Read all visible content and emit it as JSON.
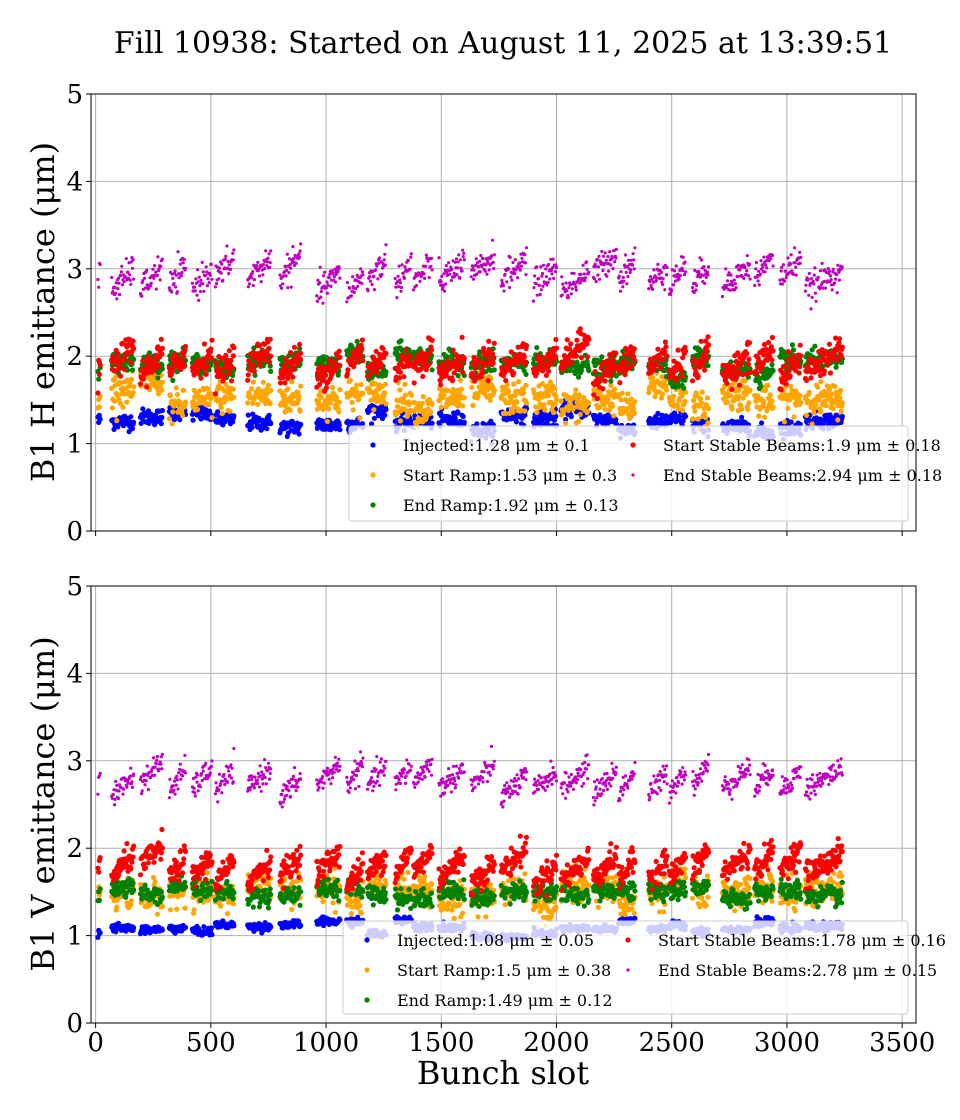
{
  "figure": {
    "title": "Fill 10938: Started on August 11, 2025 at 13:39:51",
    "xlabel": "Bunch slot"
  },
  "chart_data": [
    {
      "type": "scatter",
      "title": "",
      "ylabel": "B1 H emittance (μm)",
      "xlim": [
        -20,
        3560
      ],
      "ylim": [
        0,
        5
      ],
      "x_ticks": [
        0,
        500,
        1000,
        1500,
        2000,
        2500,
        3000,
        3500
      ],
      "y_ticks": [
        0,
        1,
        2,
        3,
        4,
        5
      ],
      "grid": true,
      "legend_placement": "lower-right",
      "series": [
        {
          "name": "Injected",
          "legend_label": "Injected:1.28 μm ± 0.1",
          "mean": 1.28,
          "std": 0.1,
          "color": "#0000ff"
        },
        {
          "name": "Start Ramp",
          "legend_label": "Start Ramp:1.53 μm ± 0.3",
          "mean": 1.53,
          "std": 0.3,
          "color": "#ffa500"
        },
        {
          "name": "End Ramp",
          "legend_label": "End Ramp:1.92 μm ± 0.13",
          "mean": 1.92,
          "std": 0.13,
          "color": "#008000"
        },
        {
          "name": "Start Stable Beams",
          "legend_label": "Start Stable Beams:1.9 μm ± 0.18",
          "mean": 1.9,
          "std": 0.18,
          "color": "#ff0000"
        },
        {
          "name": "End Stable Beams",
          "legend_label": "End Stable Beams:2.94 μm ± 0.18",
          "mean": 2.94,
          "std": 0.18,
          "color": "#bf00bf"
        }
      ]
    },
    {
      "type": "scatter",
      "title": "",
      "ylabel": "B1 V emittance (μm)",
      "xlim": [
        -20,
        3560
      ],
      "ylim": [
        0,
        5
      ],
      "x_ticks": [
        0,
        500,
        1000,
        1500,
        2000,
        2500,
        3000,
        3500
      ],
      "y_ticks": [
        0,
        1,
        2,
        3,
        4,
        5
      ],
      "grid": true,
      "legend_placement": "lower-right",
      "series": [
        {
          "name": "Injected",
          "legend_label": "Injected:1.08 μm ± 0.05",
          "mean": 1.08,
          "std": 0.05,
          "color": "#0000ff"
        },
        {
          "name": "Start Ramp",
          "legend_label": "Start Ramp:1.5 μm ± 0.38",
          "mean": 1.5,
          "std": 0.38,
          "color": "#ffa500"
        },
        {
          "name": "End Ramp",
          "legend_label": "End Ramp:1.49 μm ± 0.12",
          "mean": 1.49,
          "std": 0.12,
          "color": "#008000"
        },
        {
          "name": "Start Stable Beams",
          "legend_label": "Start Stable Beams:1.78 μm ± 0.16",
          "mean": 1.78,
          "std": 0.16,
          "color": "#ff0000"
        },
        {
          "name": "End Stable Beams",
          "legend_label": "End Stable Beams:2.78 μm ± 0.15",
          "mean": 2.78,
          "std": 0.15,
          "color": "#bf00bf"
        }
      ]
    }
  ],
  "bunch_trains": [
    [
      10,
      20
    ],
    [
      70,
      165
    ],
    [
      195,
      290
    ],
    [
      320,
      390
    ],
    [
      420,
      505
    ],
    [
      520,
      600
    ],
    [
      660,
      760
    ],
    [
      800,
      890
    ],
    [
      960,
      1060
    ],
    [
      1090,
      1160
    ],
    [
      1180,
      1260
    ],
    [
      1300,
      1370
    ],
    [
      1380,
      1460
    ],
    [
      1490,
      1600
    ],
    [
      1630,
      1730
    ],
    [
      1760,
      1870
    ],
    [
      1900,
      2000
    ],
    [
      2020,
      2140
    ],
    [
      2160,
      2260
    ],
    [
      2270,
      2340
    ],
    [
      2400,
      2480
    ],
    [
      2490,
      2560
    ],
    [
      2590,
      2660
    ],
    [
      2720,
      2840
    ],
    [
      2860,
      2940
    ],
    [
      2970,
      3060
    ],
    [
      3080,
      3240
    ]
  ]
}
